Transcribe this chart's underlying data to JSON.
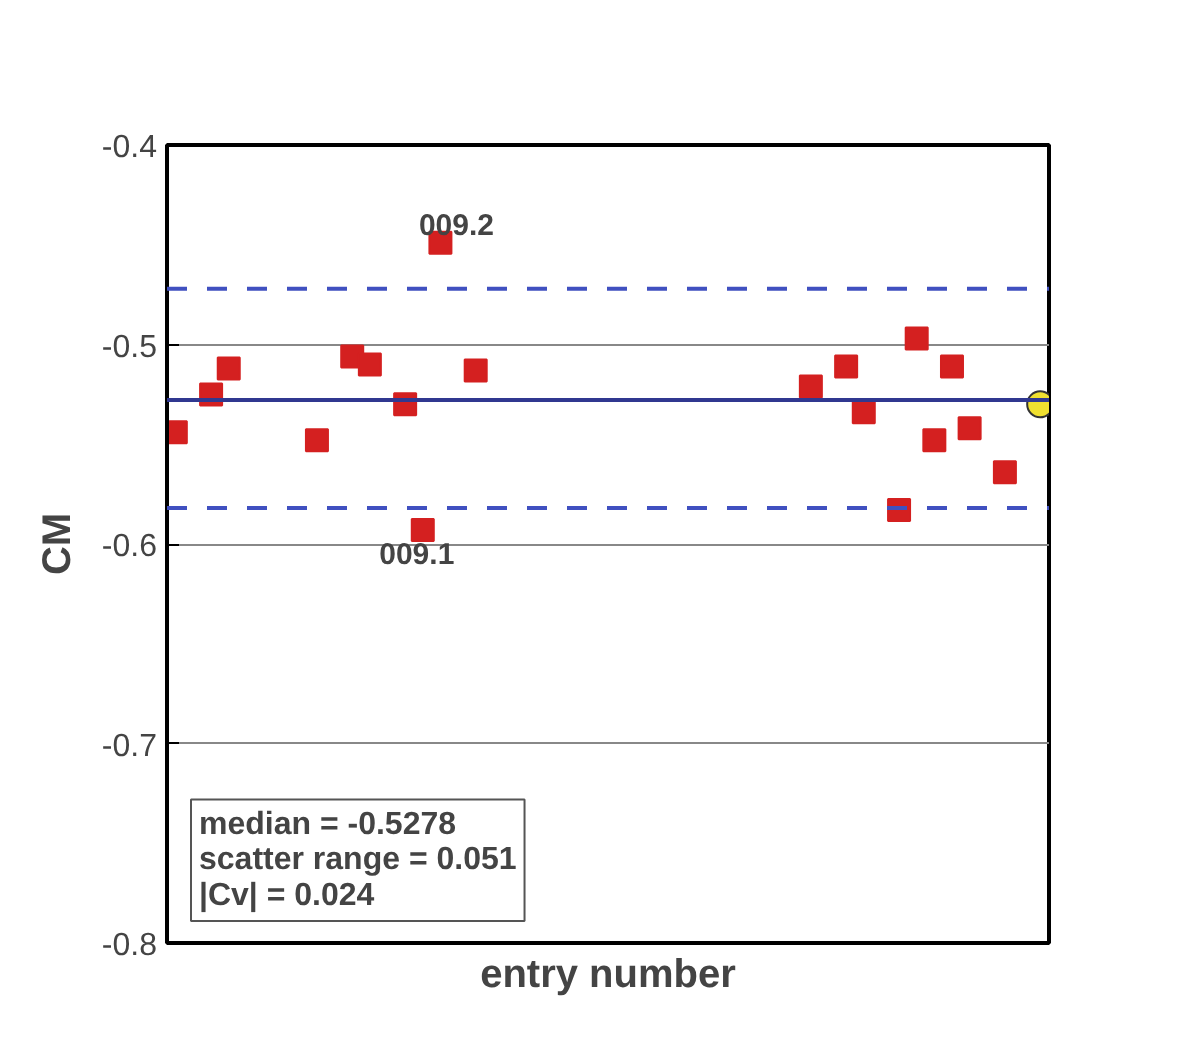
{
  "chart_data": {
    "type": "scatter",
    "xlabel": "entry number",
    "ylabel": "CM",
    "categories": [
      null,
      null,
      null,
      null,
      null,
      null,
      null,
      null,
      null,
      null,
      null,
      null,
      null,
      null,
      null,
      null,
      null,
      null,
      null,
      null,
      null,
      null,
      null,
      null,
      null,
      null,
      null,
      null,
      null,
      null,
      null,
      null,
      null,
      null,
      null,
      null,
      null,
      null,
      null,
      null,
      null,
      null,
      null,
      null,
      null,
      null,
      null,
      null,
      null,
      null
    ],
    "series": [
      {
        "color": "#d42020",
        "marker": "square",
        "values": [
          -0.544,
          null,
          -0.525,
          -0.512,
          null,
          null,
          null,
          null,
          -0.548,
          null,
          -0.506,
          -0.51,
          null,
          -0.53,
          -0.593,
          -0.449,
          null,
          -0.513,
          null,
          null,
          null,
          null,
          null,
          null,
          null,
          null,
          null,
          null,
          null,
          null,
          null,
          null,
          null,
          null,
          null,
          null,
          -0.521,
          null,
          -0.511,
          -0.534,
          null,
          -0.583,
          -0.497,
          -0.548,
          -0.511,
          -0.542,
          null,
          -0.564,
          null,
          null
        ]
      },
      {
        "color": "#f0e030",
        "marker": "circle",
        "values": [
          null,
          null,
          null,
          null,
          null,
          null,
          null,
          null,
          null,
          null,
          null,
          null,
          null,
          null,
          null,
          null,
          null,
          null,
          null,
          null,
          null,
          null,
          null,
          null,
          null,
          null,
          null,
          null,
          null,
          null,
          null,
          null,
          null,
          null,
          null,
          null,
          null,
          null,
          null,
          null,
          null,
          null,
          null,
          null,
          null,
          null,
          null,
          null,
          null,
          -0.53
        ]
      }
    ],
    "ylim": [
      -0.8,
      -0.4
    ],
    "yticks": [
      -0.8,
      -0.7,
      -0.6,
      -0.5,
      -0.4
    ],
    "tick_labels": "y",
    "grid": "y",
    "ref_lines": [
      {
        "axis": "y",
        "value": -0.5278,
        "color": "#303890",
        "line_style": "solid"
      },
      {
        "axis": "y",
        "value": -0.472,
        "color": "#4050c0",
        "line_style": "dashed"
      },
      {
        "axis": "y",
        "value": -0.582,
        "color": "#4050c0",
        "line_style": "dashed"
      }
    ],
    "annotations": [
      {
        "text": "009.2",
        "y": -0.449
      },
      {
        "text": "009.1",
        "y": -0.593
      },
      "median = -0.5278\nscatter range = 0.051\n|Cv| = 0.024"
    ]
  }
}
